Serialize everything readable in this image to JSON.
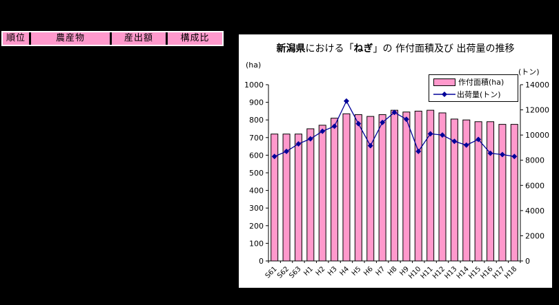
{
  "table_header": {
    "cells": [
      "順位",
      "農産物",
      "産出額",
      "構成比"
    ],
    "fill": "#FF99CC"
  },
  "chart": {
    "title_segments": [
      {
        "text": "新潟県",
        "bold": true
      },
      {
        "text": "における「",
        "bold": false
      },
      {
        "text": "ねぎ",
        "bold": true
      },
      {
        "text": "」の 作付面積及び 出荷量の推移",
        "bold": false
      }
    ],
    "left_axis_unit": "(ha)",
    "right_axis_unit": "(トン)",
    "legend": {
      "items": [
        {
          "label": "作付面積(ha)",
          "swatch": "pink-bar"
        },
        {
          "label": "出荷量(トン)",
          "swatch": "blue-line-diamond"
        }
      ]
    },
    "colors": {
      "bar_fill": "#FF99CC",
      "bar_stroke": "#000000",
      "line": "#000099",
      "marker": "#000099",
      "panel_bg": "#FFFFFF",
      "page_bg": "#000000",
      "text": "#000000"
    }
  },
  "chart_data": {
    "type": "bar",
    "combo": "bar+line",
    "title": "新潟県における「ねぎ」の作付面積及び出荷量の推移",
    "categories": [
      "S61",
      "S62",
      "S63",
      "H1",
      "H2",
      "H3",
      "H4",
      "H5",
      "H6",
      "H7",
      "H8",
      "H9",
      "H10",
      "H11",
      "H12",
      "H13",
      "H14",
      "H15",
      "H16",
      "H17",
      "H18"
    ],
    "series": [
      {
        "name": "作付面積(ha)",
        "type": "bar",
        "axis": "left",
        "values": [
          720,
          720,
          720,
          750,
          770,
          810,
          835,
          830,
          820,
          830,
          855,
          845,
          850,
          855,
          840,
          805,
          800,
          790,
          790,
          775,
          775
        ]
      },
      {
        "name": "出荷量(トン)",
        "type": "line",
        "axis": "right",
        "values": [
          8300,
          8700,
          9300,
          9700,
          10300,
          10700,
          12700,
          10900,
          9150,
          11000,
          11800,
          11250,
          8700,
          10100,
          10000,
          9500,
          9200,
          9650,
          8550,
          8450,
          8300
        ]
      }
    ],
    "left_axis": {
      "label": "(ha)",
      "min": 0,
      "max": 1000,
      "step": 100
    },
    "right_axis": {
      "label": "(トン)",
      "min": 0,
      "max": 14000,
      "step": 2000
    },
    "grid": false,
    "legend_position": "inside-top-right",
    "x_tick_label_rotation": -45
  }
}
